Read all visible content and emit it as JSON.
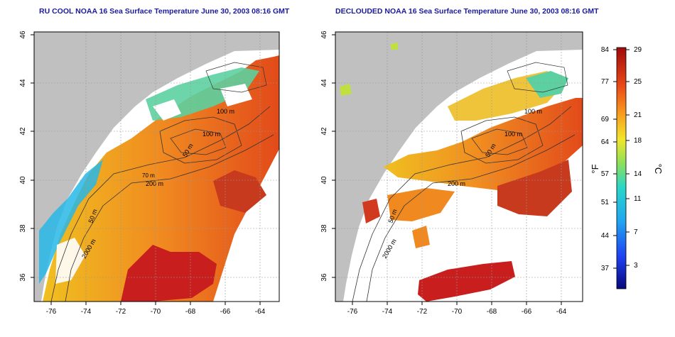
{
  "maps": [
    {
      "title": "RU COOL NOAA 16 Sea Surface Temperature June 30, 2003 08:16 GMT",
      "x_ticks": [
        "-76",
        "-74",
        "-72",
        "-70",
        "-68",
        "-66",
        "-64"
      ],
      "y_ticks": [
        "46",
        "44",
        "42",
        "40",
        "38",
        "36"
      ],
      "contour_labels": [
        "100 m",
        "100 m",
        "50 m",
        "200 m",
        "70 m",
        "50 m",
        "2000 m"
      ]
    },
    {
      "title": "DECLOUDED NOAA 16 Sea Surface Temperature June 30, 2003 08:16 GMT",
      "x_ticks": [
        "-76",
        "-74",
        "-72",
        "-70",
        "-68",
        "-66",
        "-64"
      ],
      "y_ticks": [
        "46",
        "44",
        "42",
        "40",
        "38",
        "36"
      ],
      "contour_labels": [
        "100 m",
        "100 m",
        "50 m",
        "200 m",
        "50 m",
        "2000 m"
      ]
    }
  ],
  "colorbar": {
    "f_unit": "°F",
    "c_unit": "°C",
    "f_ticks": [
      "84",
      "77",
      "69",
      "64",
      "57",
      "51",
      "44",
      "37"
    ],
    "c_ticks": [
      "29",
      "25",
      "21",
      "18",
      "14",
      "11",
      "7",
      "3"
    ]
  },
  "colors": {
    "land": "#c0c0c0",
    "title": "#1a1aa0",
    "warm": "#c81e1e",
    "cool": "#23b4e6"
  }
}
